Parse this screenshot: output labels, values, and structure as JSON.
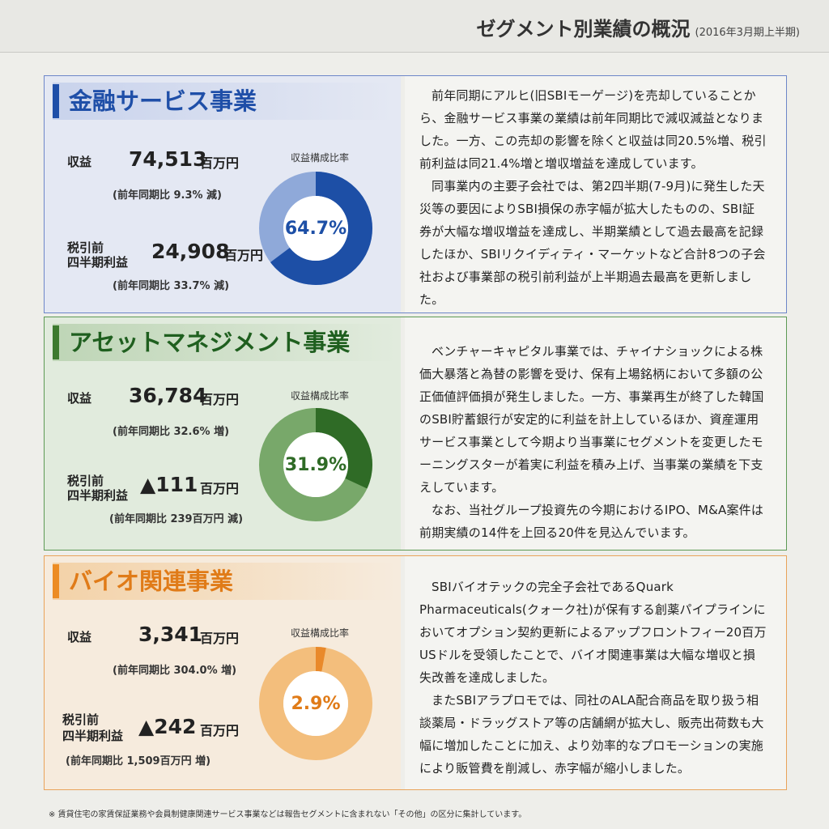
{
  "header": {
    "title": "ゼグメント別業績の概況",
    "period": "(2016年3月期上半期)"
  },
  "sections": [
    {
      "title": "金融サービス事業",
      "revenue_label": "収益",
      "revenue_value": "74,513",
      "revenue_unit": "百万円",
      "revenue_note": "(前年同期比 9.3% 減)",
      "profit_label_line1": "税引前",
      "profit_label_line2": "四半期利益",
      "profit_value": "24,908",
      "profit_unit": "百万円",
      "profit_note": "(前年同期比 33.7% 減)",
      "chart_label": "収益構成比率",
      "share_text": "64.7%",
      "share": 0.647,
      "color_main": "#1d4fa6",
      "color_rest": "#8fa9d9",
      "paragraphs": [
        "前年同期にアルヒ(旧SBIモーゲージ)を売却していることから、金融サービス事業の業績は前年同期比で減収減益となりました。一方、この売却の影響を除くと収益は同20.5%増、税引前利益は同21.4%増と増収増益を達成しています。",
        "同事業内の主要子会社では、第2四半期(7-9月)に発生した天災等の要因によりSBI損保の赤字幅が拡大したものの、SBI証券が大幅な増収増益を達成し、半期業績として過去最高を記録したほか、SBIリクイディティ・マーケットなど合計8つの子会社および事業部の税引前利益が上半期過去最高を更新しました。"
      ]
    },
    {
      "title": "アセットマネジメント事業",
      "revenue_label": "収益",
      "revenue_value": "36,784",
      "revenue_unit": "百万円",
      "revenue_note": "(前年同期比 32.6% 増)",
      "profit_label_line1": "税引前",
      "profit_label_line2": "四半期利益",
      "profit_value": "▲111",
      "profit_unit": "百万円",
      "profit_note": "(前年同期比 239百万円 減)",
      "chart_label": "収益構成比率",
      "share_text": "31.9%",
      "share": 0.319,
      "color_main": "#2f6b26",
      "color_rest": "#78a86a",
      "paragraphs": [
        "ベンチャーキャピタル事業では、チャイナショックによる株価大暴落と為替の影響を受け、保有上場銘柄において多額の公正価値評価損が発生しました。一方、事業再生が終了した韓国のSBI貯蓄銀行が安定的に利益を計上しているほか、資産運用サービス事業として今期より当事業にセグメントを変更したモーニングスターが着実に利益を積み上げ、当事業の業績を下支えしています。",
        "なお、当社グループ投資先の今期におけるIPO、M&A案件は前期実績の14件を上回る20件を見込んでいます。"
      ]
    },
    {
      "title": "バイオ関連事業",
      "revenue_label": "収益",
      "revenue_value": "3,341",
      "revenue_unit": "百万円",
      "revenue_note": "(前年同期比 304.0% 増)",
      "profit_label_line1": "税引前",
      "profit_label_line2": "四半期利益",
      "profit_value": "▲242",
      "profit_unit": "百万円",
      "profit_note": "(前年同期比 1,509百万円 増)",
      "chart_label": "収益構成比率",
      "share_text": "2.9%",
      "share": 0.029,
      "color_main": "#e9892a",
      "color_rest": "#f3be7c",
      "paragraphs": [
        "SBIバイオテックの完全子会社であるQuark Pharmaceuticals(クォーク社)が保有する創薬パイプラインにおいてオプション契約更新によるアップフロントフィー20百万USドルを受領したことで、バイオ関連事業は大幅な増収と損失改善を達成しました。",
        "またSBIアラプロモでは、同社のALA配合商品を取り扱う相談薬局・ドラッグストア等の店舗網が拡大し、販売出荷数も大幅に増加したことに加え、より効率的なプロモーションの実施により販管費を削減し、赤字幅が縮小しました。"
      ]
    }
  ],
  "footnote": "※ 賃貸住宅の家賃保証業務や会員制健康関連サービス事業などは報告セグメントに含まれない「その他」の区分に集計しています。"
}
